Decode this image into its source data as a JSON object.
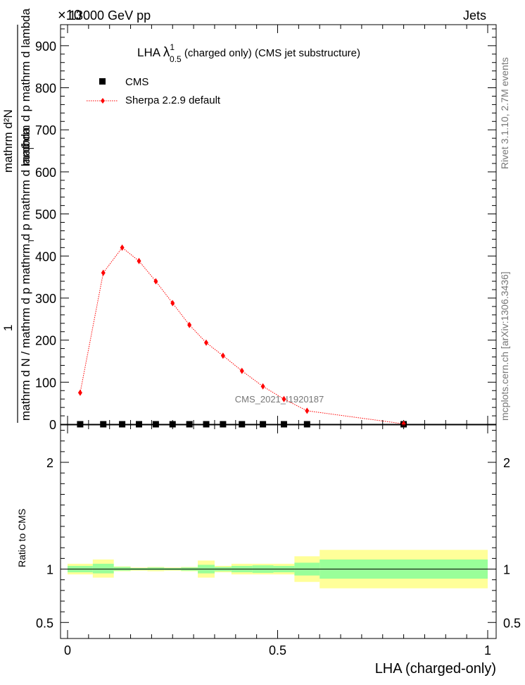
{
  "header": {
    "energy_label": "13000 GeV pp",
    "process_label": "Jets",
    "exponent_label": "×10",
    "exponent_power": "-3"
  },
  "side_labels": {
    "rivet": "Rivet 3.1.10,  2.7M events",
    "mcplots": "mcplots.cern.ch [arXiv:1306.3436]"
  },
  "main_plot": {
    "title_prefix": "LHA ",
    "title_lambda": "λ",
    "title_sup": "1",
    "title_sub": "0.5",
    "title_suffix": " (charged only) (CMS jet substructure)",
    "watermark": "CMS_2021_I1920187",
    "ylabel_numerator": "mathrm d²N",
    "ylabel_denominator_top": "mathrm d p  mathrm d lambda",
    "ylabel_one": "1",
    "ylabel_denominator": "mathrm d N / mathrm d p  mathrm d p  mathrm d lambda",
    "ylabel_sub_T": "T",
    "legend": {
      "cms": "CMS",
      "sherpa": "Sherpa 2.2.9 default"
    }
  },
  "ratio_plot": {
    "ylabel": "Ratio to CMS",
    "xlabel": "LHA (charged-only)"
  },
  "colors": {
    "cms": "#000000",
    "sherpa": "#ff0000",
    "band_inner": "#99ff99",
    "band_outer": "#ffff99"
  },
  "chart_data": {
    "type": "scatter",
    "x_range": [
      0,
      1
    ],
    "main": {
      "y_range": [
        0,
        950
      ],
      "y_ticks": [
        0,
        100,
        200,
        300,
        400,
        500,
        600,
        700,
        800,
        900
      ],
      "series": [
        {
          "name": "CMS",
          "x": [
            0.03,
            0.085,
            0.13,
            0.17,
            0.21,
            0.25,
            0.29,
            0.33,
            0.37,
            0.415,
            0.465,
            0.515,
            0.57,
            0.8
          ],
          "y": [
            0,
            0,
            0,
            0,
            0,
            0,
            0,
            0,
            0,
            0,
            0,
            0,
            0,
            0
          ]
        },
        {
          "name": "Sherpa 2.2.9 default",
          "x": [
            0.03,
            0.085,
            0.13,
            0.17,
            0.21,
            0.25,
            0.29,
            0.33,
            0.37,
            0.415,
            0.465,
            0.515,
            0.57,
            0.8
          ],
          "y": [
            75,
            360,
            420,
            388,
            340,
            288,
            236,
            194,
            163,
            127,
            90,
            60,
            32,
            1
          ]
        }
      ]
    },
    "ratio": {
      "y_range": [
        0.35,
        2.35
      ],
      "y_ticks": [
        0.5,
        1,
        2
      ],
      "y_tick_labels": [
        "0.5",
        "1",
        "2"
      ],
      "x_ticks": [
        0,
        0.5,
        1
      ],
      "x_tick_labels": [
        "0",
        "0.5",
        "1"
      ],
      "bins": [
        {
          "lo": 0.0,
          "hi": 0.06,
          "inner": [
            0.97,
            1.03
          ],
          "outer": [
            0.95,
            1.05
          ]
        },
        {
          "lo": 0.06,
          "hi": 0.11,
          "inner": [
            0.96,
            1.05
          ],
          "outer": [
            0.92,
            1.09
          ]
        },
        {
          "lo": 0.11,
          "hi": 0.15,
          "inner": [
            0.985,
            1.02
          ],
          "outer": [
            0.98,
            1.025
          ]
        },
        {
          "lo": 0.15,
          "hi": 0.19,
          "inner": [
            0.99,
            1.01
          ],
          "outer": [
            0.985,
            1.015
          ]
        },
        {
          "lo": 0.19,
          "hi": 0.23,
          "inner": [
            0.99,
            1.015
          ],
          "outer": [
            0.98,
            1.02
          ]
        },
        {
          "lo": 0.23,
          "hi": 0.27,
          "inner": [
            0.99,
            1.01
          ],
          "outer": [
            0.985,
            1.015
          ]
        },
        {
          "lo": 0.27,
          "hi": 0.31,
          "inner": [
            0.985,
            1.015
          ],
          "outer": [
            0.98,
            1.02
          ]
        },
        {
          "lo": 0.31,
          "hi": 0.35,
          "inner": [
            0.96,
            1.04
          ],
          "outer": [
            0.92,
            1.08
          ]
        },
        {
          "lo": 0.35,
          "hi": 0.39,
          "inner": [
            0.98,
            1.02
          ],
          "outer": [
            0.97,
            1.03
          ]
        },
        {
          "lo": 0.39,
          "hi": 0.44,
          "inner": [
            0.97,
            1.03
          ],
          "outer": [
            0.95,
            1.05
          ]
        },
        {
          "lo": 0.44,
          "hi": 0.49,
          "inner": [
            0.965,
            1.035
          ],
          "outer": [
            0.95,
            1.05
          ]
        },
        {
          "lo": 0.49,
          "hi": 0.54,
          "inner": [
            0.97,
            1.03
          ],
          "outer": [
            0.95,
            1.05
          ]
        },
        {
          "lo": 0.54,
          "hi": 0.6,
          "inner": [
            0.94,
            1.06
          ],
          "outer": [
            0.88,
            1.12
          ]
        },
        {
          "lo": 0.6,
          "hi": 1.0,
          "inner": [
            0.91,
            1.09
          ],
          "outer": [
            0.82,
            1.18
          ]
        }
      ]
    }
  }
}
